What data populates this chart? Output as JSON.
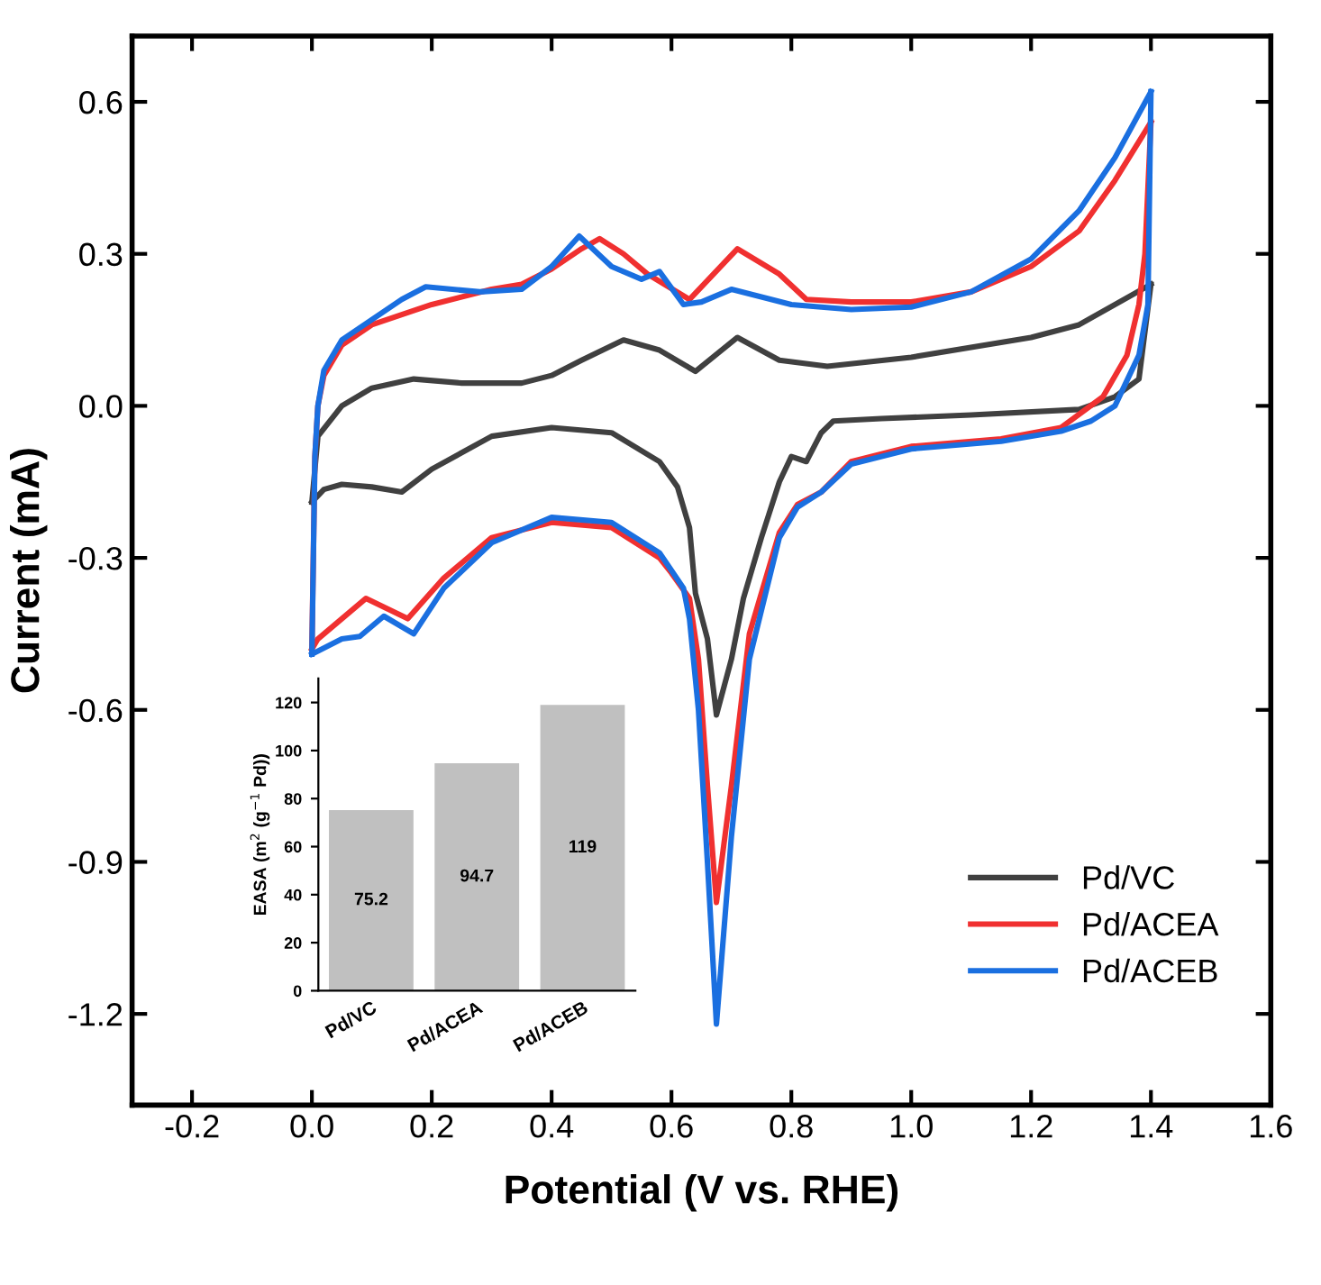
{
  "chart_data": [
    {
      "type": "line",
      "xlabel": "Potential (V vs. RHE)",
      "ylabel": "Current (mA)",
      "xlim": [
        -0.3,
        1.6
      ],
      "xticks": [
        -0.2,
        {
          "value": 0,
          "label": "0.0"
        },
        0.2,
        0.4,
        0.6,
        0.8,
        {
          "value": 1,
          "label": "1.0"
        },
        1.2,
        1.4,
        1.6
      ],
      "ylim": [
        -1.38,
        0.73
      ],
      "yticks": [
        -1.2,
        -0.9,
        -0.6,
        -0.3,
        {
          "value": 0,
          "label": "0.0"
        },
        0.3,
        0.6
      ],
      "grid": false,
      "legend": "bottom right",
      "line_style": "solid",
      "marker": "none",
      "series": [
        {
          "name": "Pd/VC",
          "color": "#404040",
          "x": [
            0.0,
            0.01,
            0.05,
            0.1,
            0.17,
            0.25,
            0.35,
            0.4,
            0.45,
            0.52,
            0.58,
            0.64,
            0.71,
            0.78,
            0.86,
            1.0,
            1.2,
            1.28,
            1.4
          ],
          "values": [
            -0.19,
            -0.06,
            0.0,
            0.035,
            0.053,
            0.045,
            0.045,
            0.06,
            0.09,
            0.13,
            0.11,
            0.068,
            0.135,
            0.09,
            0.078,
            0.096,
            0.135,
            0.16,
            0.24
          ]
        },
        {
          "color": "#404040",
          "x": [
            0.0,
            0.02,
            0.05,
            0.1,
            0.15,
            0.2,
            0.3,
            0.4,
            0.5,
            0.58,
            0.61,
            0.63,
            0.64,
            0.66,
            0.675,
            0.7,
            0.72,
            0.75,
            0.78,
            0.8,
            0.825,
            0.85,
            0.87,
            0.95,
            1.1,
            1.28,
            1.34,
            1.38,
            1.4
          ],
          "values": [
            -0.19,
            -0.165,
            -0.155,
            -0.16,
            -0.17,
            -0.125,
            -0.06,
            -0.043,
            -0.053,
            -0.11,
            -0.16,
            -0.24,
            -0.37,
            -0.46,
            -0.61,
            -0.5,
            -0.38,
            -0.26,
            -0.15,
            -0.1,
            -0.11,
            -0.053,
            -0.03,
            -0.025,
            -0.018,
            -0.007,
            0.018,
            0.053,
            0.24
          ]
        },
        {
          "name": "Pd/ACEA",
          "color": "#f03030",
          "x": [
            0.0,
            0.005,
            0.01,
            0.02,
            0.05,
            0.1,
            0.2,
            0.3,
            0.35,
            0.4,
            0.45,
            0.48,
            0.52,
            0.56,
            0.63,
            0.71,
            0.78,
            0.825,
            0.9,
            1.0,
            1.1,
            1.2,
            1.28,
            1.34,
            1.4
          ],
          "values": [
            -0.48,
            -0.1,
            0.0,
            0.06,
            0.12,
            0.16,
            0.2,
            0.23,
            0.24,
            0.27,
            0.31,
            0.33,
            0.3,
            0.26,
            0.21,
            0.31,
            0.26,
            0.21,
            0.205,
            0.205,
            0.225,
            0.275,
            0.345,
            0.445,
            0.56
          ]
        },
        {
          "color": "#f03030",
          "x": [
            0.0,
            0.01,
            0.05,
            0.09,
            0.16,
            0.22,
            0.3,
            0.4,
            0.5,
            0.58,
            0.6,
            0.63,
            0.645,
            0.66,
            0.675,
            0.7,
            0.73,
            0.78,
            0.81,
            0.85,
            0.9,
            1.0,
            1.15,
            1.25,
            1.32,
            1.36,
            1.38,
            1.39,
            1.4
          ],
          "values": [
            -0.48,
            -0.46,
            -0.42,
            -0.38,
            -0.42,
            -0.34,
            -0.26,
            -0.23,
            -0.24,
            -0.3,
            -0.33,
            -0.38,
            -0.5,
            -0.75,
            -0.98,
            -0.75,
            -0.45,
            -0.25,
            -0.195,
            -0.17,
            -0.11,
            -0.08,
            -0.065,
            -0.043,
            0.018,
            0.1,
            0.2,
            0.3,
            0.56
          ]
        },
        {
          "name": "Pd/ACEB",
          "color": "#1a6fe0",
          "x": [
            0.0,
            0.005,
            0.01,
            0.02,
            0.05,
            0.1,
            0.15,
            0.19,
            0.28,
            0.35,
            0.4,
            0.446,
            0.5,
            0.55,
            0.58,
            0.62,
            0.65,
            0.7,
            0.8,
            0.9,
            1.0,
            1.1,
            1.2,
            1.28,
            1.34,
            1.4
          ],
          "values": [
            -0.49,
            -0.1,
            0.0,
            0.07,
            0.13,
            0.17,
            0.21,
            0.235,
            0.225,
            0.23,
            0.275,
            0.335,
            0.275,
            0.25,
            0.265,
            0.2,
            0.205,
            0.23,
            0.2,
            0.19,
            0.195,
            0.225,
            0.29,
            0.385,
            0.49,
            0.62
          ]
        },
        {
          "color": "#1a6fe0",
          "x": [
            0.0,
            0.05,
            0.08,
            0.12,
            0.17,
            0.22,
            0.3,
            0.4,
            0.5,
            0.58,
            0.62,
            0.63,
            0.645,
            0.66,
            0.675,
            0.7,
            0.73,
            0.78,
            0.81,
            0.85,
            0.9,
            1.0,
            1.15,
            1.25,
            1.3,
            1.34,
            1.38,
            1.395,
            1.4
          ],
          "values": [
            -0.49,
            -0.46,
            -0.455,
            -0.415,
            -0.45,
            -0.36,
            -0.27,
            -0.22,
            -0.23,
            -0.29,
            -0.36,
            -0.42,
            -0.6,
            -0.9,
            -1.22,
            -0.85,
            -0.5,
            -0.26,
            -0.2,
            -0.17,
            -0.115,
            -0.085,
            -0.07,
            -0.05,
            -0.03,
            0.0,
            0.1,
            0.2,
            0.62
          ]
        }
      ]
    },
    {
      "type": "bar",
      "ylabel": "EASA (m$^{2}$ (g$^{−1}$ Pd))",
      "categories": [
        "Pd/VC",
        "Pd/ACEA",
        "Pd/ACEB"
      ],
      "values": [
        75.2,
        94.7,
        119
      ],
      "color": "#c0c0c0",
      "data_labels": true,
      "grid": false,
      "ylim": [
        0,
        130
      ],
      "yticks": [
        0,
        20,
        40,
        60,
        80,
        100,
        120
      ]
    }
  ]
}
